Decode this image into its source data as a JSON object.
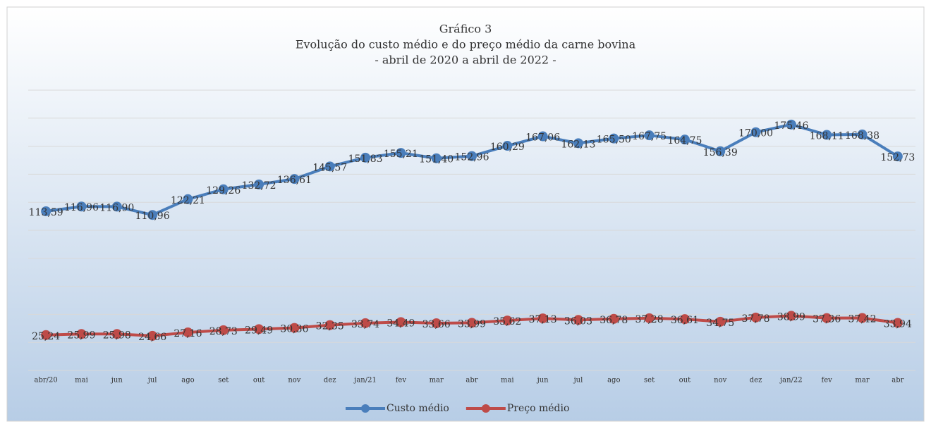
{
  "chart_data": {
    "type": "line",
    "title": "Gráfico 3",
    "subtitle": [
      "Evolução do custo médio e do preço médio da carne bovina",
      "- abril de 2020 a abril de 2022 -"
    ],
    "categories": [
      "abr/20",
      "mai",
      "jun",
      "jul",
      "ago",
      "set",
      "out",
      "nov",
      "dez",
      "jan/21",
      "fev",
      "mar",
      "abr",
      "mai",
      "jun",
      "jul",
      "ago",
      "set",
      "out",
      "nov",
      "dez",
      "jan/22",
      "fev",
      "mar",
      "abr"
    ],
    "series": [
      {
        "name": "Custo médio",
        "color": "#4a7ebb",
        "values": [
          113.59,
          116.96,
          116.9,
          110.96,
          122.21,
          129.26,
          132.72,
          136.61,
          145.57,
          151.83,
          155.21,
          151.4,
          152.96,
          160.29,
          167.06,
          162.13,
          165.5,
          167.75,
          164.75,
          156.39,
          170.0,
          175.46,
          168.11,
          168.38,
          152.73
        ],
        "value_labels": [
          "113,59",
          "116,96",
          "116,90",
          "110,96",
          "122,21",
          "129,26",
          "132,72",
          "136,61",
          "145,57",
          "151,83",
          "155,21",
          "151,40",
          "152,96",
          "160,29",
          "167,06",
          "162,13",
          "165,50",
          "167,75",
          "164,75",
          "156,39",
          "170,00",
          "175,46",
          "168,11",
          "168,38",
          "152,73"
        ]
      },
      {
        "name": "Preço médio",
        "color": "#be4b48",
        "values": [
          25.24,
          25.99,
          25.98,
          24.66,
          27.16,
          28.73,
          29.49,
          30.36,
          32.35,
          33.74,
          34.49,
          33.66,
          33.99,
          35.62,
          37.13,
          36.03,
          36.78,
          37.28,
          36.61,
          34.75,
          37.78,
          38.99,
          37.36,
          37.42,
          33.94
        ],
        "value_labels": [
          "25,24",
          "25,99",
          "25,98",
          "24,66",
          "27,16",
          "28,73",
          "29,49",
          "30,36",
          "32,35",
          "33,74",
          "34,49",
          "33,66",
          "33,99",
          "35,62",
          "37,13",
          "36,03",
          "36,78",
          "37,28",
          "36,61",
          "34,75",
          "37,78",
          "38,99",
          "37,36",
          "37,42",
          "33,94"
        ]
      }
    ],
    "ylim": [
      0,
      200
    ],
    "yticks": [
      0,
      20,
      40,
      60,
      80,
      100,
      120,
      140,
      160,
      180,
      200
    ],
    "grid": true,
    "legend": "bottom"
  }
}
